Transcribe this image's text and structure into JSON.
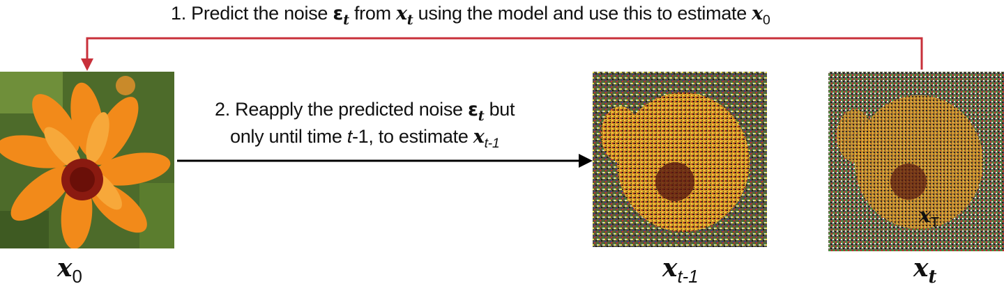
{
  "step1": {
    "prefix": "1. Predict the noise ",
    "eps": "ε",
    "eps_sub": "t",
    "mid1": " from ",
    "x": "x",
    "x_sub": "t",
    "mid2": " using the model and use this to estimate ",
    "x2": "x",
    "x2_sub": "0"
  },
  "step2": {
    "line1_prefix": "2. Reapply the predicted noise ",
    "eps": "ε",
    "eps_sub": "t",
    "line1_suffix": " but",
    "line2_prefix": "only until time ",
    "t": "t",
    "t_suffix": "-1, to estimate ",
    "x": "x",
    "x_sub": "t-1"
  },
  "labels": {
    "x0": {
      "sym": "x",
      "sub": "0"
    },
    "xt1": {
      "sym": "x",
      "sub": "t-1"
    },
    "xt": {
      "sym": "x",
      "sub": "t"
    },
    "overlay": {
      "sym": "x",
      "sub": "T"
    }
  },
  "colors": {
    "feedback_arrow": "#c8303a",
    "forward_arrow": "#000000",
    "petal": "#f28a1a",
    "center": "#8a1a10",
    "foliage": "#4d6b2a"
  }
}
